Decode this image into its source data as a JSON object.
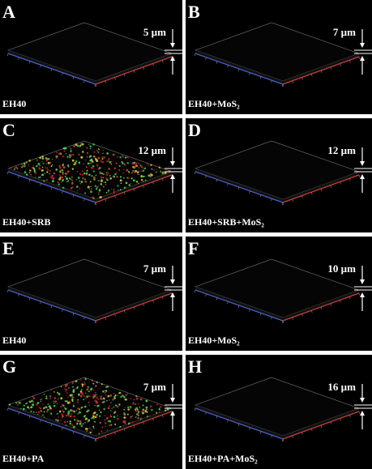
{
  "panels": [
    {
      "letter": "A",
      "thickness": "5 µm",
      "label": "EH40"
    },
    {
      "letter": "B",
      "thickness": "7 µm",
      "label": "EH40+MoS₂"
    },
    {
      "letter": "C",
      "thickness": "12 µm",
      "label": "EH40+SRB"
    },
    {
      "letter": "D",
      "thickness": "12 µm",
      "label": "EH40+SRB+MoS₂"
    },
    {
      "letter": "E",
      "thickness": "7 µm",
      "label": "EH40"
    },
    {
      "letter": "F",
      "thickness": "10 µm",
      "label": "EH40+MoS₂"
    },
    {
      "letter": "G",
      "thickness": "7 µm",
      "label": "EH40+PA"
    },
    {
      "letter": "H",
      "thickness": "16 µm",
      "label": "EH40+PA+MoS₂"
    }
  ]
}
